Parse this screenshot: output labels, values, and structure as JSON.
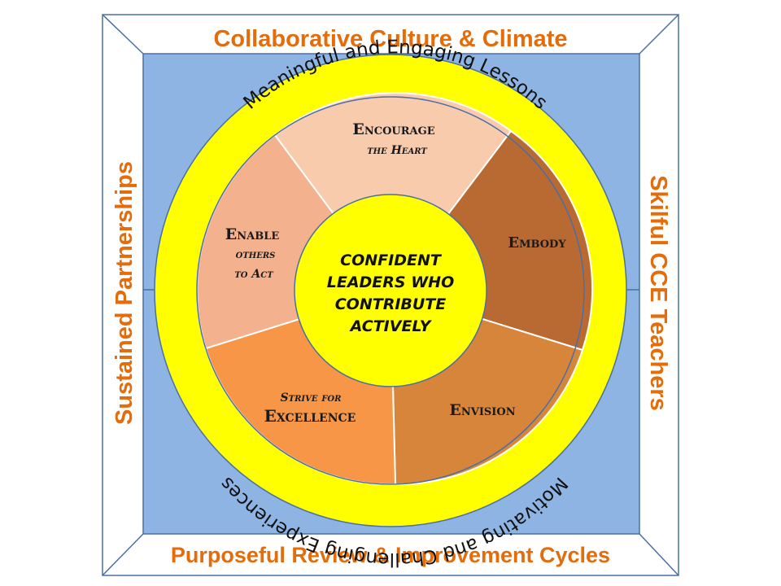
{
  "frame": {
    "top": "Collaborative Culture & Climate",
    "bottom": "Purposeful Review & Improvement Cycles",
    "left": "Sustained Partnerships",
    "right": "Skilful CCE Teachers"
  },
  "ring": {
    "top": "Meaningful and Engaging Lessons",
    "bottom": "Motivating and Challenging Experiences"
  },
  "segments": {
    "encourage": {
      "line1": "Encourage",
      "line2": "the Heart"
    },
    "embody": {
      "line1": "Embody"
    },
    "envision": {
      "line1": "Envision"
    },
    "strive": {
      "line1": "Strive for",
      "line2": "Excellence"
    },
    "enable": {
      "line1": "Enable",
      "line2": "others",
      "line3": "to Act"
    }
  },
  "center": {
    "line1": "CONFIDENT",
    "line2": "LEADERS WHO",
    "line3": "CONTRIBUTE",
    "line4": "ACTIVELY"
  },
  "colors": {
    "frame_text": "#e46c0a",
    "inner_bg": "#8eb4e3",
    "ring": "#ffff00",
    "encourage": "#f8cbad",
    "embody": "#b96a32",
    "envision": "#d8853c",
    "strive": "#f79646",
    "enable": "#f4b18e"
  }
}
